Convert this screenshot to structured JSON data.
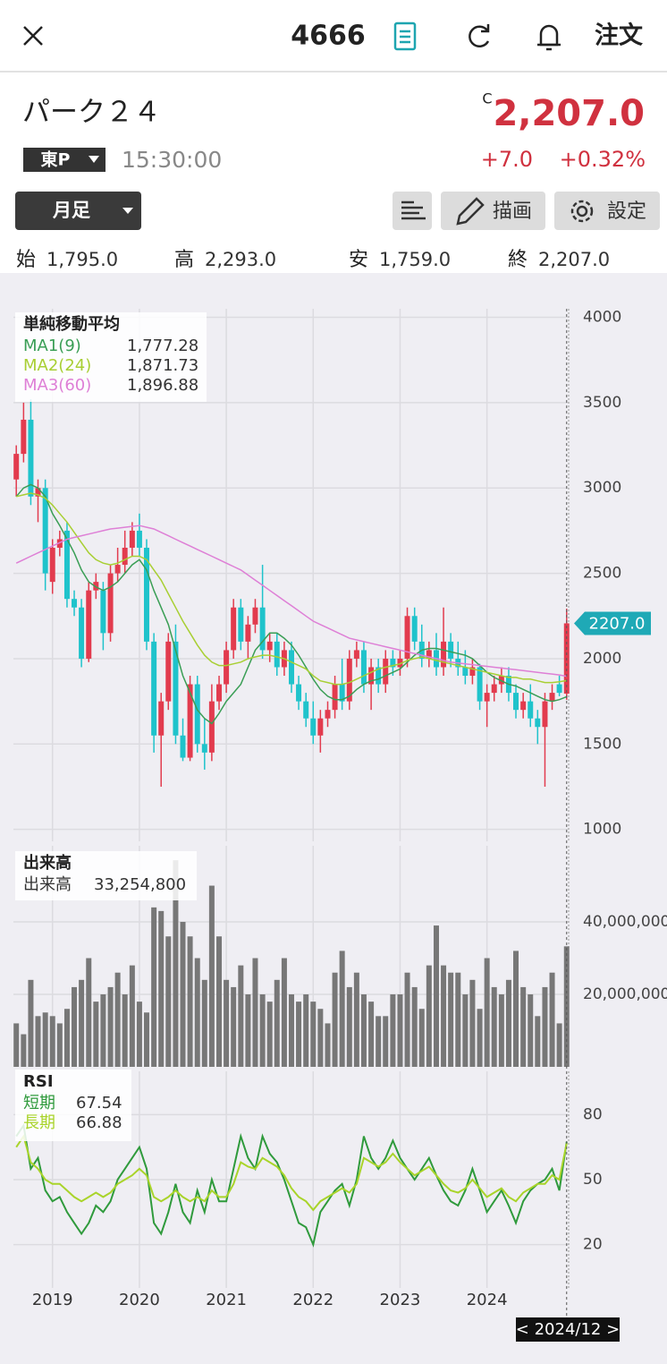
{
  "header": {
    "ticker": "4666",
    "order": "注文"
  },
  "stock": {
    "name": "パーク２４",
    "price_flag": "C",
    "price": "2,207.0",
    "market": "東P",
    "time": "15:30:00",
    "change": "+7.0",
    "change_pct": "+0.32%"
  },
  "toolbar": {
    "period": "月足",
    "draw": "描画",
    "settings": "設定"
  },
  "ohlc": [
    {
      "label": "始",
      "value": "1,795.0"
    },
    {
      "label": "高",
      "value": "2,293.0"
    },
    {
      "label": "安",
      "value": "1,759.0"
    },
    {
      "label": "終",
      "value": "2,207.0"
    }
  ],
  "chart_data": [
    {
      "type": "candlestick",
      "title": "単純移動平均",
      "up_color": "#e23b4e",
      "down_color": "#1fc3cb",
      "x": [
        2018.583,
        2018.667,
        2018.75,
        2018.833,
        2018.917,
        2019,
        2019.083,
        2019.167,
        2019.25,
        2019.333,
        2019.417,
        2019.5,
        2019.583,
        2019.667,
        2019.75,
        2019.833,
        2019.917,
        2020,
        2020.083,
        2020.167,
        2020.25,
        2020.333,
        2020.417,
        2020.5,
        2020.583,
        2020.667,
        2020.75,
        2020.833,
        2020.917,
        2021,
        2021.083,
        2021.167,
        2021.25,
        2021.333,
        2021.417,
        2021.5,
        2021.583,
        2021.667,
        2021.75,
        2021.833,
        2021.917,
        2022,
        2022.083,
        2022.167,
        2022.25,
        2022.333,
        2022.417,
        2022.5,
        2022.583,
        2022.667,
        2022.75,
        2022.833,
        2022.917,
        2023,
        2023.083,
        2023.167,
        2023.25,
        2023.333,
        2023.417,
        2023.5,
        2023.583,
        2023.667,
        2023.75,
        2023.833,
        2023.917,
        2024,
        2024.083,
        2024.167,
        2024.25,
        2024.333,
        2024.417,
        2024.5,
        2024.583,
        2024.667,
        2024.75,
        2024.833,
        2024.917
      ],
      "open": [
        3050,
        3200,
        3400,
        2950,
        3000,
        2450,
        2650,
        2750,
        2350,
        2300,
        2000,
        2400,
        2400,
        2150,
        2500,
        2550,
        2650,
        2750,
        2650,
        2100,
        1550,
        1750,
        2100,
        1550,
        1420,
        1850,
        1500,
        1450,
        1750,
        1850,
        2050,
        2300,
        2100,
        2200,
        2300,
        2050,
        2100,
        1950,
        2050,
        1850,
        1750,
        1650,
        1550,
        1650,
        1700,
        1850,
        1750,
        2000,
        2050,
        1850,
        1950,
        1850,
        2000,
        1950,
        2000,
        2250,
        2100,
        2000,
        2050,
        1950,
        2100,
        2000,
        1950,
        1900,
        1950,
        1750,
        1800,
        1850,
        1900,
        1800,
        1700,
        1750,
        1650,
        1600,
        1750,
        1850,
        1795
      ],
      "high": [
        3250,
        3500,
        3520,
        3050,
        3050,
        2700,
        2750,
        2800,
        2400,
        2350,
        2450,
        2500,
        2450,
        2550,
        2650,
        2750,
        2800,
        2850,
        2700,
        2150,
        1800,
        2150,
        2200,
        1650,
        1900,
        1900,
        1650,
        1850,
        1900,
        2100,
        2350,
        2350,
        2250,
        2350,
        2550,
        2150,
        2150,
        2100,
        2100,
        1900,
        1800,
        1750,
        1700,
        1750,
        1900,
        2000,
        2050,
        2100,
        2100,
        2000,
        2000,
        2050,
        2050,
        2050,
        2300,
        2300,
        2200,
        2100,
        2150,
        2300,
        2150,
        2100,
        2050,
        2000,
        1970,
        1850,
        1900,
        1950,
        1950,
        1850,
        1800,
        1850,
        1700,
        1800,
        1850,
        1900,
        2293
      ],
      "low": [
        2950,
        3150,
        2900,
        2800,
        2400,
        2380,
        2600,
        2300,
        2250,
        1950,
        1980,
        2350,
        2050,
        2100,
        2450,
        2500,
        2600,
        2600,
        2050,
        1450,
        1250,
        1700,
        1500,
        1400,
        1400,
        1450,
        1350,
        1400,
        1700,
        1800,
        2000,
        2050,
        2000,
        2150,
        2000,
        1980,
        1900,
        1900,
        1800,
        1700,
        1600,
        1500,
        1450,
        1600,
        1650,
        1700,
        1700,
        1950,
        1800,
        1700,
        1800,
        1800,
        1900,
        1900,
        1950,
        2050,
        1950,
        1950,
        1900,
        1900,
        1950,
        1900,
        1850,
        1850,
        1700,
        1600,
        1750,
        1800,
        1750,
        1650,
        1650,
        1600,
        1500,
        1250,
        1700,
        1780,
        1759
      ],
      "close": [
        3200,
        3400,
        2950,
        3000,
        2500,
        2650,
        2700,
        2350,
        2300,
        2000,
        2400,
        2450,
        2150,
        2500,
        2550,
        2650,
        2750,
        2650,
        2100,
        1550,
        1750,
        2100,
        1550,
        1420,
        1850,
        1500,
        1450,
        1750,
        1850,
        2050,
        2300,
        2100,
        2200,
        2300,
        2050,
        2100,
        1950,
        2050,
        1850,
        1750,
        1650,
        1550,
        1650,
        1700,
        1850,
        1750,
        2000,
        2050,
        1850,
        1950,
        1850,
        2000,
        1950,
        2000,
        2250,
        2100,
        2000,
        2050,
        1950,
        2100,
        2000,
        1950,
        1900,
        1950,
        1750,
        1800,
        1850,
        1900,
        1800,
        1700,
        1750,
        1650,
        1600,
        1750,
        1800,
        1800,
        2207
      ],
      "last_label": "2207.0",
      "series": [
        {
          "name": "MA1(9)",
          "color": "#3a9e55",
          "legend_value": "1,777.28",
          "values": [
            2950,
            3000,
            3020,
            3000,
            2950,
            2850,
            2780,
            2700,
            2620,
            2520,
            2450,
            2420,
            2400,
            2420,
            2450,
            2500,
            2550,
            2580,
            2520,
            2400,
            2300,
            2200,
            2050,
            1900,
            1800,
            1700,
            1650,
            1620,
            1680,
            1750,
            1800,
            1850,
            1950,
            2050,
            2100,
            2150,
            2150,
            2120,
            2080,
            2020,
            1950,
            1880,
            1820,
            1780,
            1760,
            1760,
            1780,
            1820,
            1850,
            1870,
            1880,
            1900,
            1920,
            1940,
            1980,
            2020,
            2050,
            2060,
            2060,
            2050,
            2040,
            2030,
            2020,
            2000,
            1960,
            1920,
            1890,
            1870,
            1850,
            1840,
            1820,
            1800,
            1780,
            1760,
            1750,
            1760,
            1777.28
          ]
        },
        {
          "name": "MA2(24)",
          "color": "#a8cf33",
          "legend_value": "1,871.73",
          "values": [
            2950,
            2960,
            2970,
            2960,
            2940,
            2900,
            2850,
            2800,
            2740,
            2680,
            2620,
            2580,
            2560,
            2550,
            2560,
            2580,
            2600,
            2600,
            2580,
            2520,
            2460,
            2380,
            2300,
            2220,
            2150,
            2080,
            2020,
            1980,
            1960,
            1960,
            1970,
            1980,
            2000,
            2010,
            2020,
            2020,
            2010,
            2000,
            1980,
            1960,
            1940,
            1900,
            1870,
            1860,
            1850,
            1850,
            1860,
            1880,
            1900,
            1920,
            1940,
            1950,
            1960,
            1970,
            1990,
            2000,
            2010,
            2000,
            1990,
            1980,
            1970,
            1960,
            1950,
            1940,
            1930,
            1920,
            1910,
            1900,
            1890,
            1890,
            1880,
            1880,
            1870,
            1860,
            1860,
            1865,
            1871.73
          ]
        },
        {
          "name": "MA3(60)",
          "color": "#de7fd6",
          "legend_value": "1,896.88",
          "values": [
            2560,
            2580,
            2600,
            2620,
            2640,
            2660,
            2680,
            2700,
            2710,
            2720,
            2730,
            2740,
            2750,
            2760,
            2765,
            2770,
            2775,
            2780,
            2770,
            2760,
            2740,
            2720,
            2700,
            2680,
            2660,
            2640,
            2620,
            2600,
            2580,
            2560,
            2540,
            2520,
            2490,
            2460,
            2430,
            2400,
            2370,
            2340,
            2310,
            2280,
            2250,
            2220,
            2200,
            2180,
            2160,
            2140,
            2120,
            2110,
            2100,
            2090,
            2080,
            2070,
            2060,
            2050,
            2040,
            2030,
            2020,
            2010,
            2000,
            1990,
            1980,
            1975,
            1970,
            1965,
            1960,
            1955,
            1950,
            1945,
            1940,
            1935,
            1930,
            1925,
            1920,
            1915,
            1910,
            1905,
            1896.88
          ]
        }
      ],
      "xlim": [
        2018.55,
        2024.94
      ],
      "ylim": [
        930,
        4050
      ],
      "yticks": [
        1000,
        1500,
        2000,
        2500,
        3000,
        3500,
        4000
      ]
    },
    {
      "type": "bar",
      "title": "出来高",
      "series": [
        {
          "name": "出来高",
          "color": "#777777",
          "legend_value": "33,254,800",
          "values": [
            12000000,
            9000000,
            24000000,
            14000000,
            15000000,
            14000000,
            12000000,
            16000000,
            22000000,
            24000000,
            30000000,
            18000000,
            20000000,
            22000000,
            26000000,
            20000000,
            28000000,
            18000000,
            15000000,
            44000000,
            43000000,
            36000000,
            57000000,
            40000000,
            36000000,
            30000000,
            24000000,
            50000000,
            36000000,
            24000000,
            22000000,
            28000000,
            20000000,
            30000000,
            20000000,
            18000000,
            24000000,
            30000000,
            20000000,
            18000000,
            20000000,
            18000000,
            16000000,
            12000000,
            26000000,
            32000000,
            22000000,
            26000000,
            20000000,
            18000000,
            14000000,
            14000000,
            20000000,
            20000000,
            26000000,
            22000000,
            16000000,
            28000000,
            39000000,
            28000000,
            26000000,
            26000000,
            20000000,
            24000000,
            16000000,
            30000000,
            22000000,
            20000000,
            24000000,
            32000000,
            22000000,
            20000000,
            14000000,
            22000000,
            26000000,
            12000000,
            33254800
          ]
        }
      ],
      "xlim": [
        2018.55,
        2024.94
      ],
      "ylim": [
        0,
        61000000
      ],
      "yticks": [
        {
          "value": 20000000,
          "label": "20,000,000"
        },
        {
          "value": 40000000,
          "label": "40,000,000"
        }
      ]
    },
    {
      "type": "line",
      "title": "RSI",
      "series": [
        {
          "name": "短期",
          "color": "#2f9a3c",
          "legend_value": "67.54",
          "values": [
            70,
            75,
            55,
            60,
            45,
            40,
            42,
            35,
            30,
            25,
            30,
            38,
            35,
            40,
            50,
            55,
            60,
            65,
            55,
            30,
            25,
            35,
            48,
            35,
            30,
            45,
            35,
            50,
            40,
            40,
            55,
            70,
            60,
            55,
            70,
            62,
            58,
            50,
            40,
            30,
            28,
            20,
            35,
            40,
            45,
            48,
            38,
            50,
            70,
            60,
            55,
            60,
            68,
            60,
            55,
            50,
            55,
            60,
            52,
            45,
            40,
            38,
            45,
            55,
            45,
            35,
            40,
            45,
            38,
            30,
            40,
            45,
            48,
            50,
            55,
            45,
            67.54
          ]
        },
        {
          "name": "長期",
          "color": "#a9d42a",
          "legend_value": "66.88",
          "values": [
            65,
            70,
            58,
            55,
            50,
            48,
            48,
            45,
            42,
            40,
            42,
            44,
            42,
            44,
            48,
            50,
            52,
            55,
            52,
            42,
            40,
            42,
            45,
            42,
            40,
            42,
            40,
            45,
            42,
            42,
            48,
            58,
            56,
            55,
            60,
            58,
            56,
            52,
            46,
            42,
            40,
            36,
            40,
            42,
            44,
            46,
            44,
            48,
            60,
            58,
            56,
            58,
            62,
            58,
            55,
            52,
            54,
            56,
            52,
            48,
            45,
            44,
            46,
            50,
            46,
            42,
            44,
            46,
            42,
            40,
            44,
            46,
            48,
            48,
            52,
            50,
            66.88
          ]
        }
      ],
      "xlim": [
        2018.55,
        2024.94
      ],
      "ylim": [
        0,
        100
      ],
      "yticks": [
        20,
        50,
        80
      ],
      "xticks": [
        2019,
        2020,
        2021,
        2022,
        2023,
        2024
      ],
      "cursor_label": "< 2024/12 >"
    }
  ]
}
